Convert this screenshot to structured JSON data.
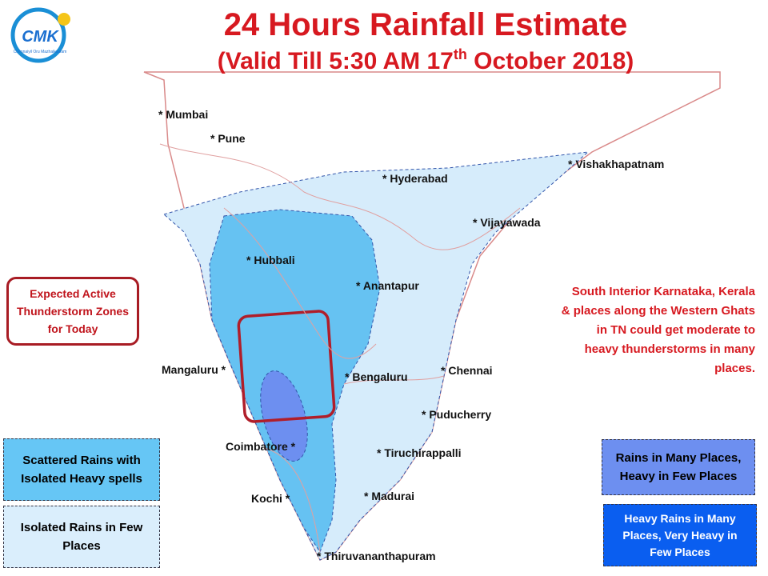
{
  "logo": {
    "mark": "CMK",
    "caption": "Chennaiyil Oru Mazhaikaalam"
  },
  "header": {
    "title": "24 Hours Rainfall Estimate",
    "subtitle": {
      "before": "(Valid Till 5:30 AM 17",
      "sup": "th",
      "after": " October 2018)"
    }
  },
  "cities": [
    "* Mumbai",
    "* Pune",
    "* Hyderabad",
    "* Vishakhapatnam",
    "* Vijayawada",
    "* Hubbali",
    "* Anantapur",
    "Mangaluru *",
    "* Bengaluru",
    "* Chennai",
    "* Puducherry",
    "Coimbatore *",
    "* Tiruchirappalli",
    "Kochi *",
    "* Madurai",
    "* Thiruvananthapuram"
  ],
  "thunderstorm_box": "Expected Active Thunderstorm Zones for Today",
  "note": "South Interior Karnataka, Kerala & places along the Western Ghats in TN could get moderate to heavy thunderstorms  in many places.",
  "legend": [
    "Scattered Rains with Isolated Heavy spells",
    "Isolated Rains in Few  Places",
    "Rains in Many Places, Heavy in Few Places",
    "Heavy Rains in Many Places, Very Heavy in Few Places"
  ]
}
